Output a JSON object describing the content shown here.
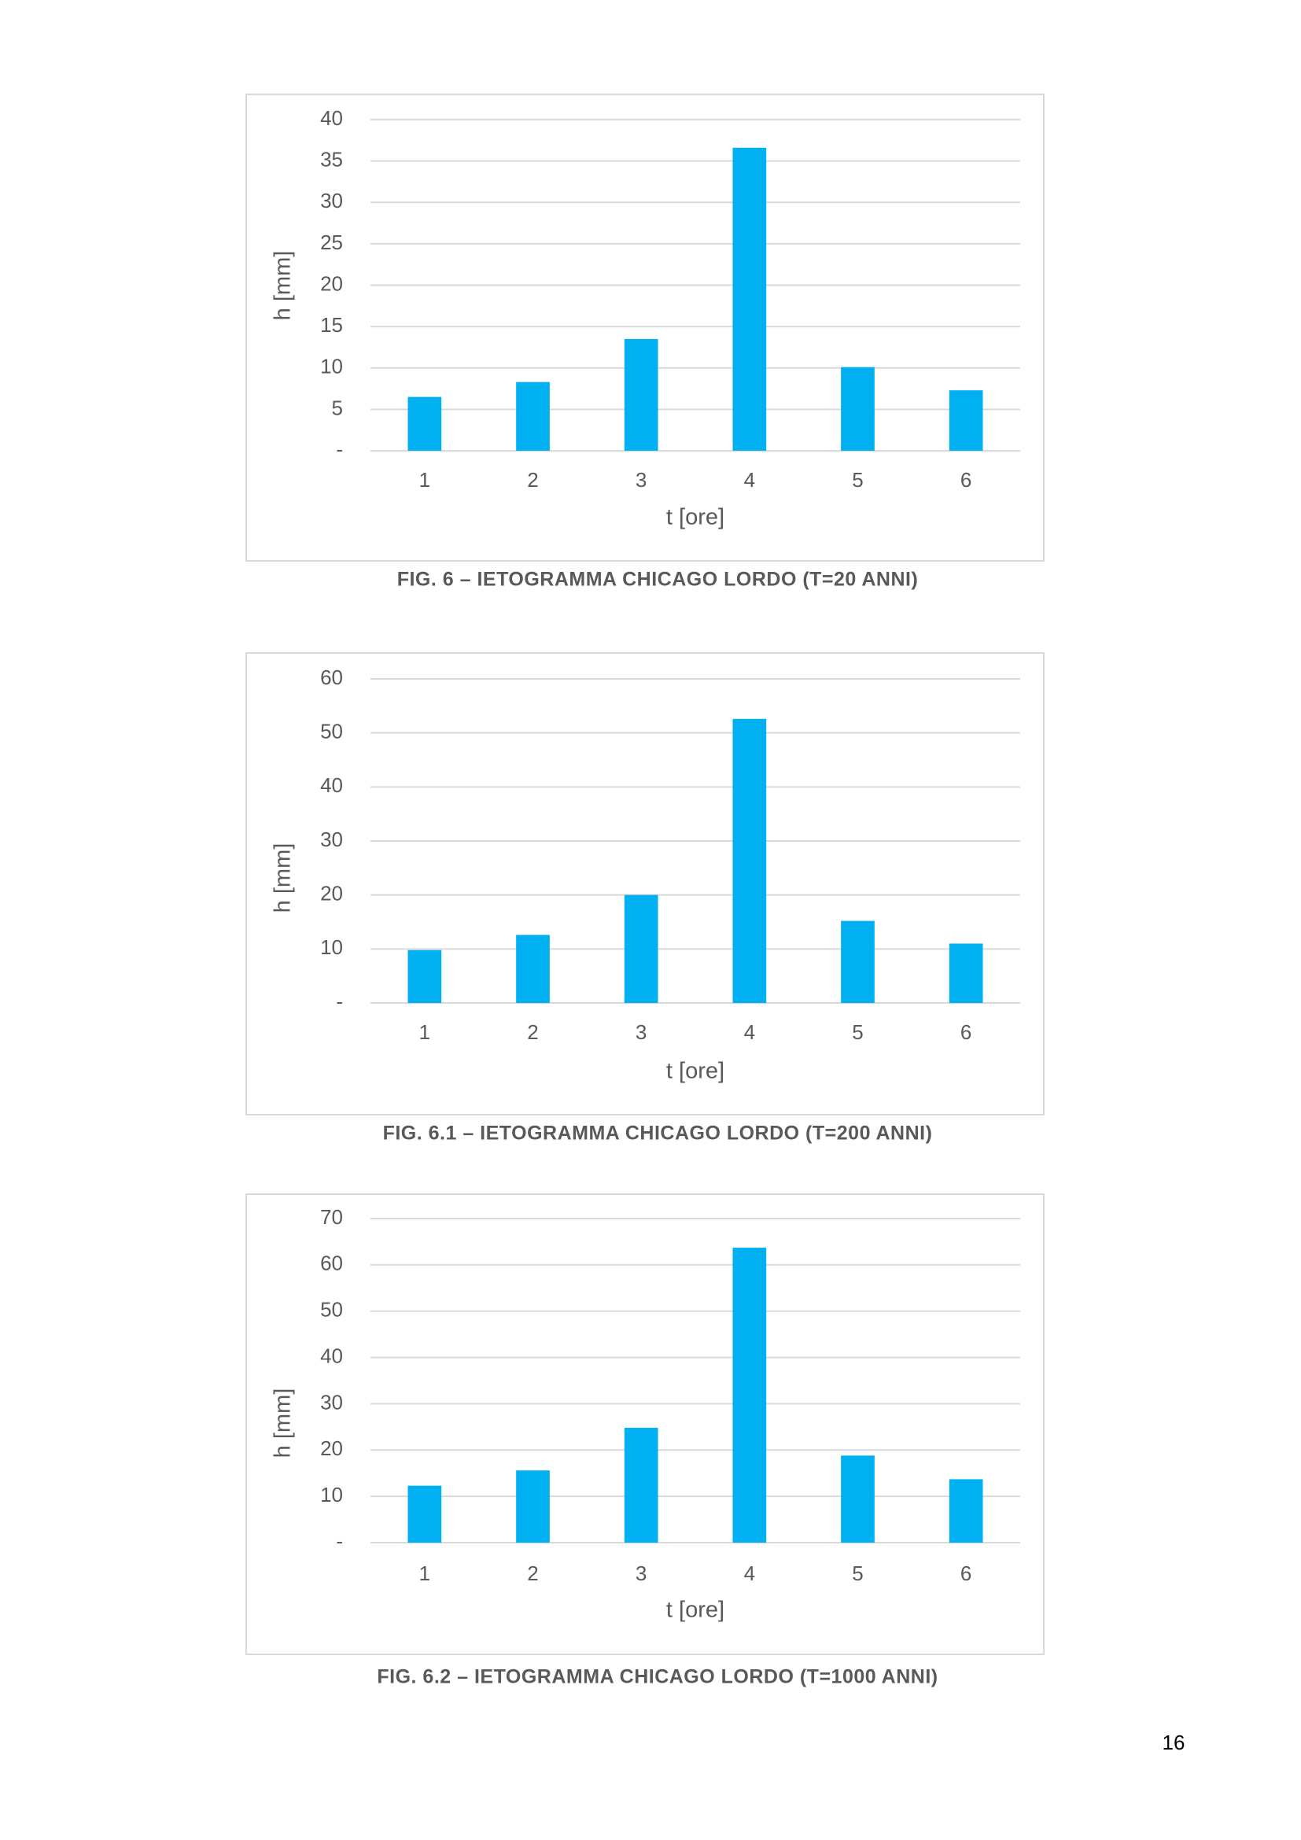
{
  "chart_data": [
    {
      "type": "bar",
      "title": "FIG. 6 – IETOGRAMMA CHICAGO LORDO (T=20 ANNI)",
      "x_label": "t [ore]",
      "y_label": "h [mm]",
      "categories": [
        "1",
        "2",
        "3",
        "4",
        "5",
        "6"
      ],
      "values": [
        6.5,
        8.3,
        13.5,
        36.6,
        10.1,
        7.3
      ],
      "color": "#00b0f0",
      "ylim": [
        0,
        40
      ],
      "yticks": [
        {
          "value": 0,
          "label": "-"
        },
        5,
        10,
        15,
        20,
        25,
        30,
        35,
        40
      ],
      "grid": true
    },
    {
      "type": "bar",
      "title": "FIG. 6.1 – IETOGRAMMA CHICAGO LORDO (T=200 ANNI)",
      "x_label": "t [ore]",
      "y_label": "h [mm]",
      "categories": [
        "1",
        "2",
        "3",
        "4",
        "5",
        "6"
      ],
      "values": [
        9.8,
        12.6,
        20.0,
        52.6,
        15.2,
        11.0
      ],
      "color": "#00b0f0",
      "ylim": [
        0,
        60
      ],
      "yticks": [
        {
          "value": 0,
          "label": "-"
        },
        10,
        20,
        30,
        40,
        50,
        60
      ],
      "grid": true
    },
    {
      "type": "bar",
      "title": "FIG. 6.2 – IETOGRAMMA CHICAGO LORDO (T=1000 ANNI)",
      "x_label": "t [ore]",
      "y_label": "h [mm]",
      "categories": [
        "1",
        "2",
        "3",
        "4",
        "5",
        "6"
      ],
      "values": [
        12.3,
        15.6,
        24.8,
        63.7,
        18.8,
        13.7
      ],
      "color": "#00b0f0",
      "ylim": [
        0,
        70
      ],
      "yticks": [
        {
          "value": 0,
          "label": "-"
        },
        10,
        20,
        30,
        40,
        50,
        60,
        70
      ],
      "grid": true
    }
  ],
  "page": {
    "number": "16"
  }
}
